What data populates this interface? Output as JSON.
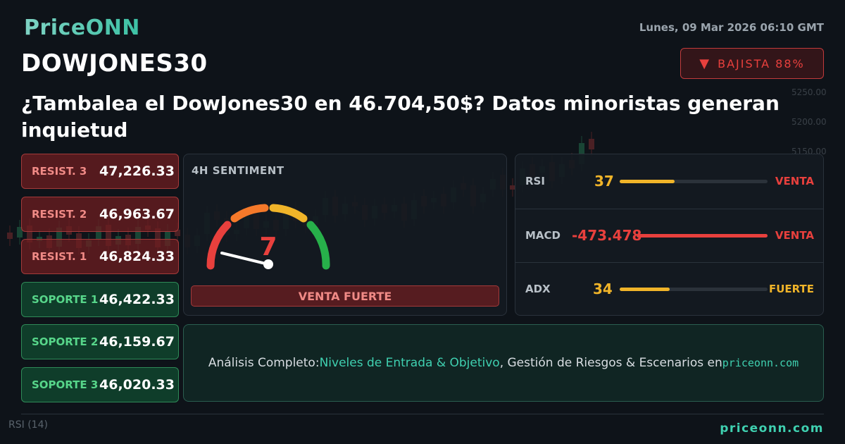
{
  "brand": {
    "logo": "PriceONN",
    "footer_site": "priceonn.com"
  },
  "header": {
    "datetime": "Lunes, 09 Mar 2026 06:10 GMT",
    "ticker": "DOWJONES30",
    "signal_badge": {
      "icon": "down-triangle-icon",
      "text": "BAJISTA 88%",
      "color": "#e8403d"
    }
  },
  "headline": "¿Tambalea el DowJones30 en 46.704,50$? Datos minoristas generan inquietud",
  "levels": [
    {
      "label": "RESIST. 3",
      "value": "47,226.33",
      "kind": "resistance"
    },
    {
      "label": "RESIST. 2",
      "value": "46,963.67",
      "kind": "resistance"
    },
    {
      "label": "RESIST. 1",
      "value": "46,824.33",
      "kind": "resistance"
    },
    {
      "label": "SOPORTE 1",
      "value": "46,422.33",
      "kind": "support"
    },
    {
      "label": "SOPORTE 2",
      "value": "46,159.67",
      "kind": "support"
    },
    {
      "label": "SOPORTE 3",
      "value": "46,020.33",
      "kind": "support"
    }
  ],
  "sentiment": {
    "title": "4H SENTIMENT",
    "score": "7",
    "score_max": 100,
    "verdict": "VENTA FUERTE"
  },
  "indicators": [
    {
      "name": "RSI",
      "value": "37",
      "value_color": "#f0b429",
      "level": 0.37,
      "bar_color": "#f0b429",
      "signal": "VENTA",
      "signal_color": "#e8403d"
    },
    {
      "name": "MACD",
      "value": "-473.478",
      "value_color": "#e8403d",
      "level": 1.0,
      "bar_color": "#e8403d",
      "signal": "VENTA",
      "signal_color": "#e8403d"
    },
    {
      "name": "ADX",
      "value": "34",
      "value_color": "#f0b429",
      "level": 0.34,
      "bar_color": "#f0b429",
      "signal": "FUERTE",
      "signal_color": "#f0b429"
    }
  ],
  "cta": {
    "prefix": "Análisis Completo: ",
    "highlight": "Niveles de Entrada & Objetivo",
    "middle": ", Gestión de Riesgos & Escenarios en ",
    "site": "priceonn.com"
  },
  "background_chart": {
    "rsi_label": "RSI",
    "rsi_period": "(14)",
    "price_ticks": [
      "5250.00",
      "5200.00",
      "5150.00"
    ]
  }
}
